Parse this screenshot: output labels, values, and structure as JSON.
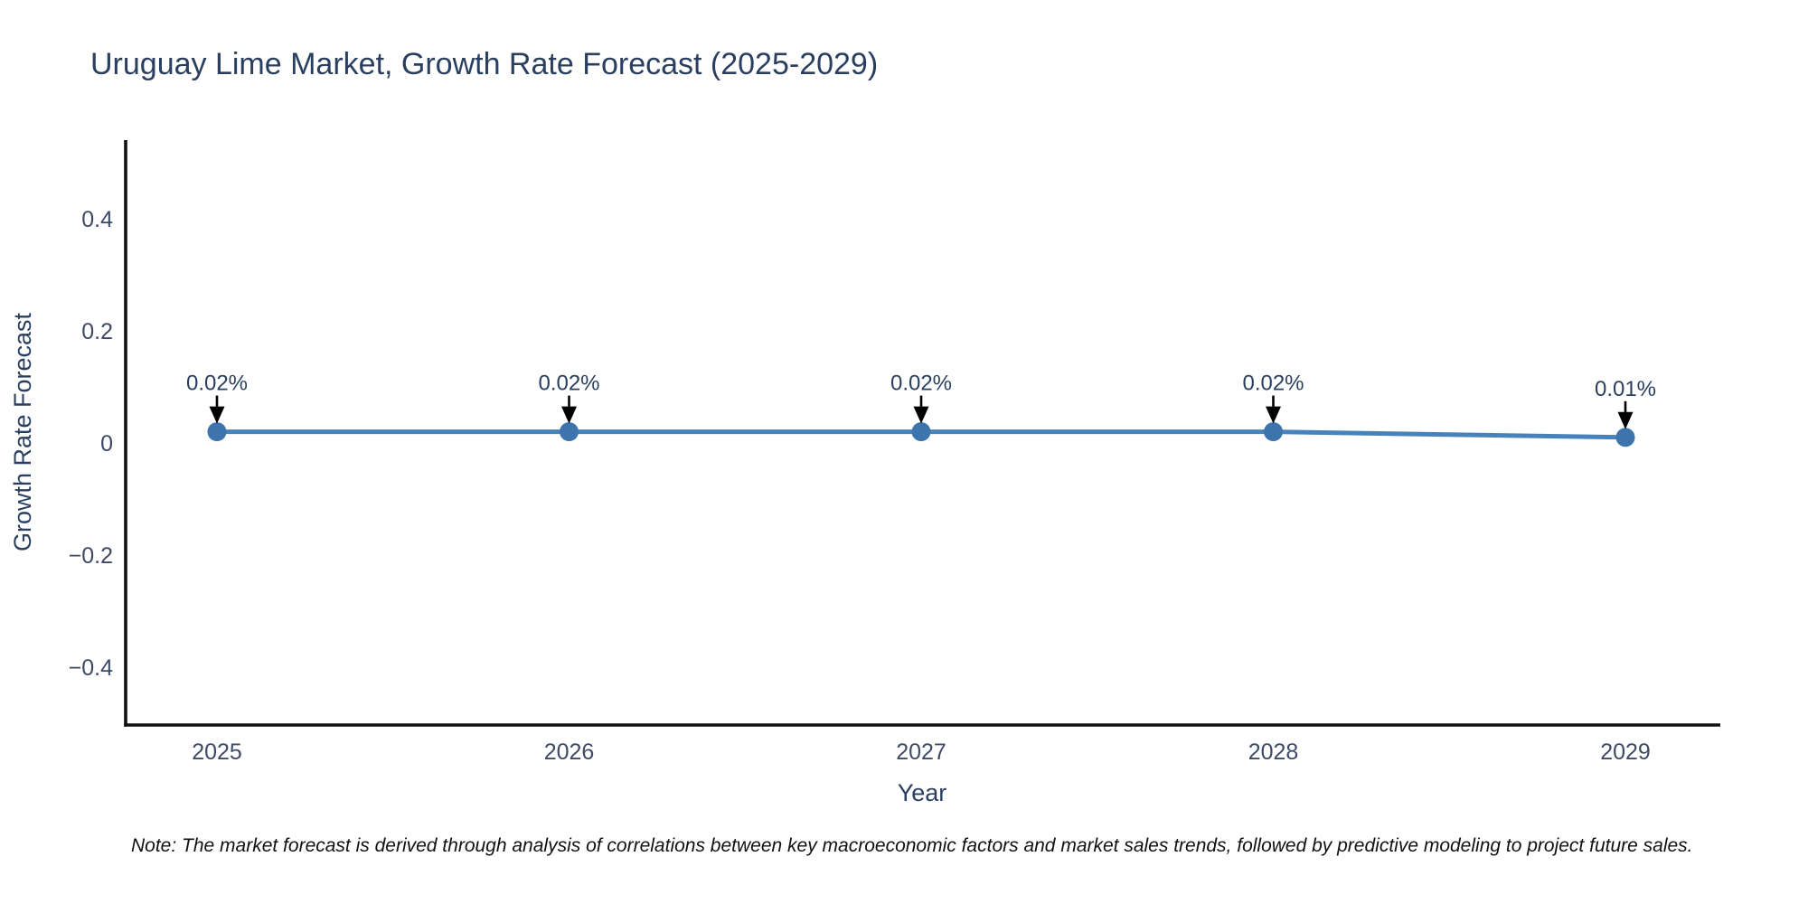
{
  "note": "Note: The market forecast is derived through analysis of correlations between key macroeconomic factors and market sales trends, followed by predictive modeling to project future sales.",
  "colors": {
    "title": "#2a3f5f",
    "tick": "#3e4a66",
    "axis": "#111111",
    "note": "#111111"
  },
  "chart_data": {
    "type": "line",
    "title": "Uruguay Lime Market, Growth Rate Forecast (2025-2029)",
    "xlabel": "Year",
    "ylabel": "Growth Rate Forecast",
    "categories": [
      "2025",
      "2026",
      "2027",
      "2028",
      "2029"
    ],
    "series": [
      {
        "name": "Growth Rate Forecast",
        "values": [
          0.02,
          0.02,
          0.02,
          0.02,
          0.01
        ]
      }
    ],
    "point_labels": [
      "0.02%",
      "0.02%",
      "0.02%",
      "0.02%",
      "0.01%"
    ],
    "ytick_values": [
      0.4,
      0.2,
      0,
      -0.2,
      -0.4
    ],
    "ytick_labels": [
      "0.4",
      "0.2",
      "0",
      "−0.2",
      "−0.4"
    ],
    "ylim": [
      -0.52,
      0.56
    ],
    "grid": false,
    "legend_position": "none",
    "line_color": "#4783ba",
    "marker_color": "#3d74ad",
    "annotation_text_color": "#2a3f5f",
    "arrow_color": "#000000"
  }
}
